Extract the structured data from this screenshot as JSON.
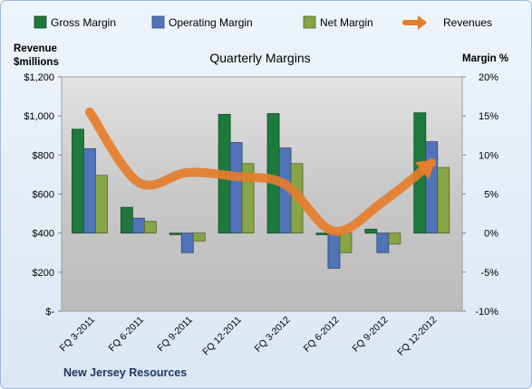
{
  "chart_data": {
    "type": "bar",
    "title": "Quarterly Margins",
    "company": "New Jersey Resources",
    "categories": [
      "FQ 3-2011",
      "FQ 6-2011",
      "FQ 9-2011",
      "FQ 12-2011",
      "FQ 3-2012",
      "FQ 6-2012",
      "FQ 9-2012",
      "FQ 12-2012"
    ],
    "y_left": {
      "label_line1": "Revenue",
      "label_line2": "$millions",
      "range": [
        0,
        1200
      ],
      "ticks": [
        0,
        200,
        400,
        600,
        800,
        1000,
        1200
      ],
      "tick_labels": [
        "$-",
        "$200",
        "$400",
        "$600",
        "$800",
        "$1,000",
        "$1,200"
      ]
    },
    "y_right": {
      "label": "Margin %",
      "range": [
        -10,
        20
      ],
      "ticks": [
        -10,
        -5,
        0,
        5,
        10,
        15,
        20
      ],
      "tick_labels": [
        "-10%",
        "-5%",
        "0%",
        "5%",
        "10%",
        "15%",
        "20%"
      ]
    },
    "series": [
      {
        "name": "Gross Margin",
        "kind": "bar",
        "axis": "right",
        "color": "#1e7a3c",
        "values": [
          13.3,
          3.3,
          -0.2,
          15.2,
          15.3,
          -0.2,
          0.5,
          15.4
        ]
      },
      {
        "name": "Operating Margin",
        "kind": "bar",
        "axis": "right",
        "color": "#4f75b8",
        "values": [
          10.8,
          1.9,
          -2.5,
          11.6,
          10.9,
          -4.5,
          -2.5,
          11.7
        ]
      },
      {
        "name": "Net Margin",
        "kind": "bar",
        "axis": "right",
        "color": "#86a545",
        "values": [
          7.4,
          1.5,
          -1.0,
          8.9,
          8.9,
          -2.5,
          -1.4,
          8.4
        ]
      },
      {
        "name": "Revenues",
        "kind": "line",
        "axis": "left",
        "color": "#e57d2b",
        "values": [
          1020,
          660,
          710,
          690,
          650,
          410,
          560,
          760
        ]
      }
    ],
    "grid": false,
    "legend": "top"
  }
}
